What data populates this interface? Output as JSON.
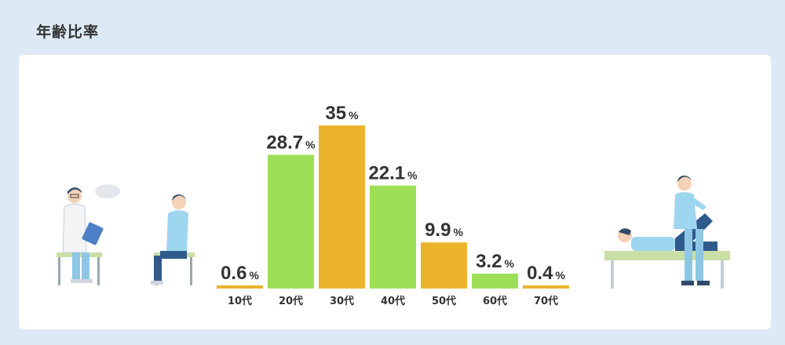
{
  "header": {
    "title": "年齢比率"
  },
  "colors": {
    "green": "#9ddf56",
    "orange": "#ebb42c",
    "background": "#ddeaf5",
    "panel": "#ffffff"
  },
  "chart_data": {
    "type": "bar",
    "title": "年齢比率",
    "categories": [
      "10代",
      "20代",
      "30代",
      "40代",
      "50代",
      "60代",
      "70代"
    ],
    "values": [
      0.6,
      28.7,
      35,
      22.1,
      9.9,
      3.2,
      0.4
    ],
    "unit": "%",
    "bar_colors": [
      "orange",
      "green",
      "orange",
      "green",
      "orange",
      "green",
      "orange"
    ],
    "ylim": [
      0,
      35
    ],
    "grid": false,
    "legend": "none"
  }
}
